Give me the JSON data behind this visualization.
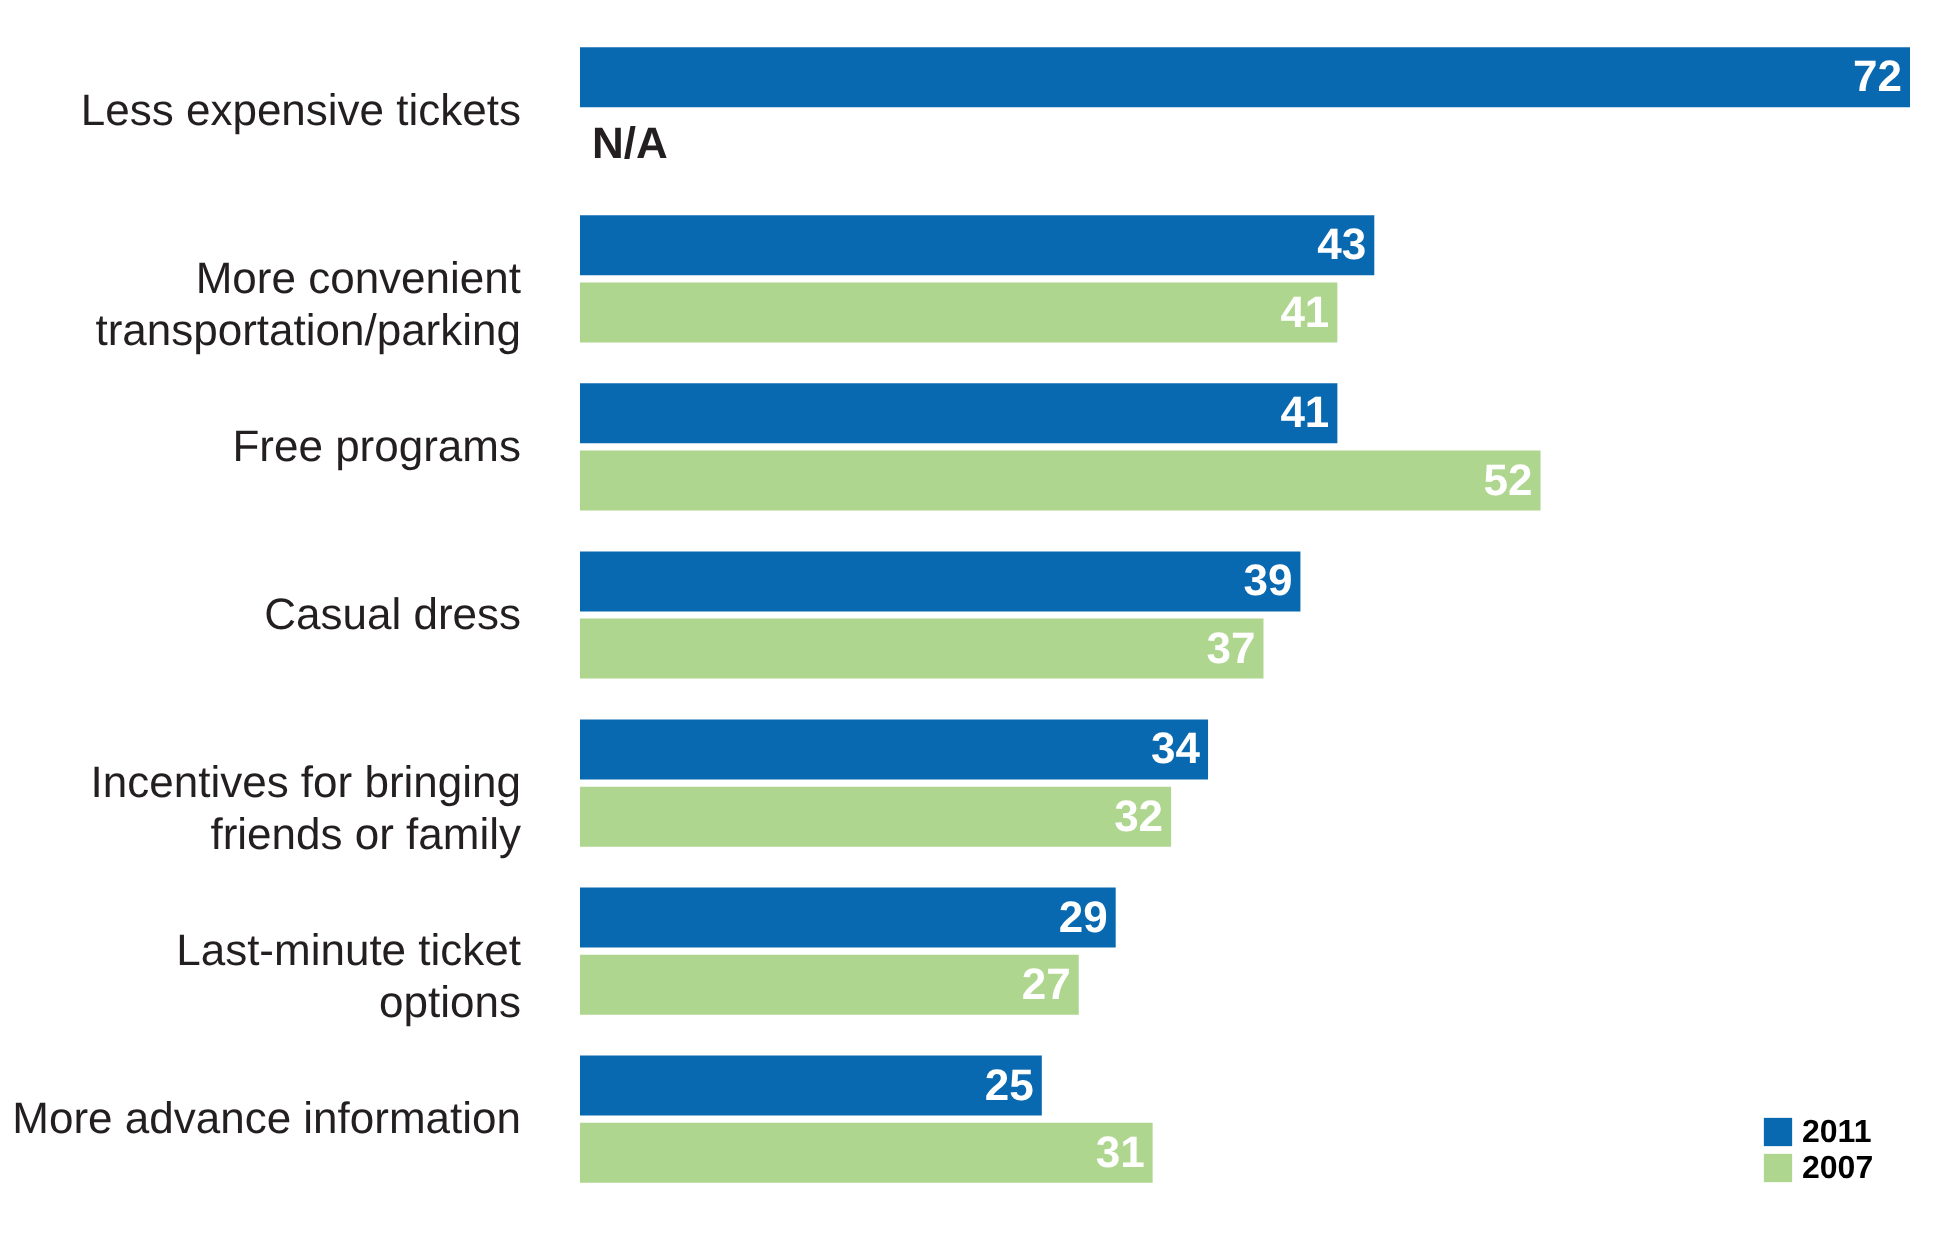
{
  "chart_data": {
    "type": "bar",
    "orientation": "horizontal",
    "categories": [
      "Less expensive tickets",
      "More convenient transportation/parking",
      "Free programs",
      "Casual dress",
      "Incentives for bringing friends or family",
      "Last-minute ticket options",
      "More advance information"
    ],
    "xlim": [
      0,
      72
    ],
    "legend": "bottom right",
    "series": [
      {
        "name": "2011",
        "color": "#0868b0",
        "values": [
          72,
          43,
          41,
          39,
          34,
          29,
          25
        ],
        "value_labels": [
          "72",
          "43",
          "41",
          "39",
          "34",
          "29",
          "25"
        ]
      },
      {
        "name": "2007",
        "color": "#afd68e",
        "values": [
          null,
          41,
          52,
          37,
          32,
          27,
          31
        ],
        "value_labels": [
          "N/A",
          "41",
          "52",
          "37",
          "32",
          "27",
          "31"
        ]
      }
    ]
  }
}
